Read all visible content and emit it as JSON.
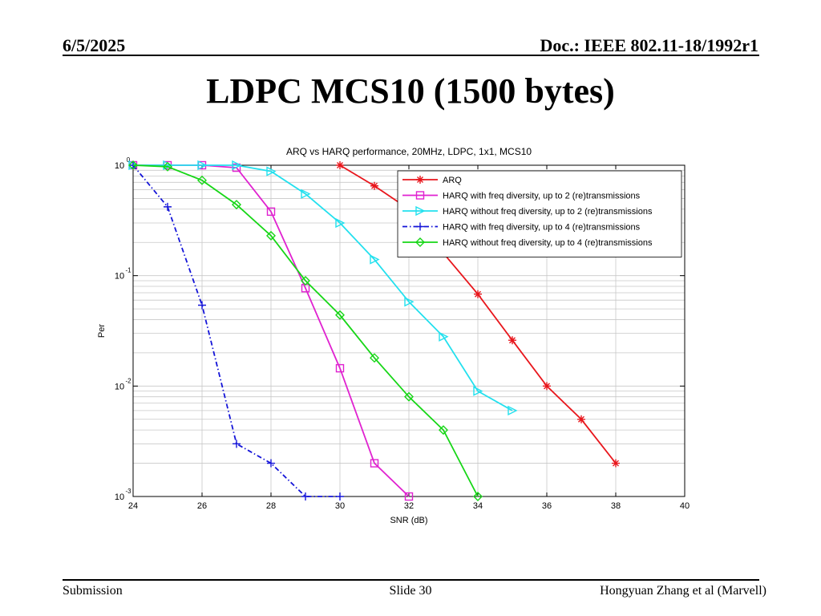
{
  "header": {
    "date": "6/5/2025",
    "doc": "Doc.: IEEE 802.11-18/1992r1"
  },
  "slide": {
    "title": "LDPC MCS10 (1500 bytes)"
  },
  "footer": {
    "left": "Submission",
    "center": "Slide 30",
    "right": "Hongyuan Zhang et al (Marvell)"
  },
  "chart_data": {
    "type": "line",
    "title": "ARQ vs HARQ performance, 20MHz, LDPC, 1x1, MCS10",
    "xlabel": "SNR (dB)",
    "ylabel": "Per",
    "xlim": [
      24,
      40
    ],
    "ylim": [
      0.001,
      1
    ],
    "yscale": "log",
    "grid": true,
    "legend_position": "top-right",
    "x_ticks": [
      "24",
      "26",
      "28",
      "30",
      "32",
      "34",
      "36",
      "38",
      "40"
    ],
    "y_ticks": [
      {
        "base": "10",
        "exp": "0"
      },
      {
        "base": "10",
        "exp": "-1"
      },
      {
        "base": "10",
        "exp": "-2"
      },
      {
        "base": "10",
        "exp": "-3"
      }
    ],
    "series": [
      {
        "name": "ARQ",
        "color": "#e8161c",
        "marker": "star",
        "dash": "solid",
        "x": [
          30,
          31,
          32,
          33,
          34,
          35,
          36,
          37,
          38
        ],
        "y": [
          1.0,
          0.65,
          0.4,
          0.16,
          0.068,
          0.026,
          0.01,
          0.005,
          0.002
        ]
      },
      {
        "name": "HARQ with freq diversity, up to 2 (re)transmissions",
        "color": "#e022d0",
        "marker": "square",
        "dash": "solid",
        "x": [
          24,
          25,
          26,
          27,
          28,
          29,
          30,
          31,
          32
        ],
        "y": [
          1.0,
          1.0,
          1.0,
          0.95,
          0.38,
          0.077,
          0.0145,
          0.002,
          0.001
        ]
      },
      {
        "name": "HARQ without freq diversity, up to 2 (re)transmissions",
        "color": "#22e0ee",
        "marker": "triangle-right",
        "dash": "solid",
        "x": [
          24,
          25,
          26,
          27,
          28,
          29,
          30,
          31,
          32,
          33,
          34,
          35
        ],
        "y": [
          1.0,
          1.0,
          1.0,
          1.0,
          0.88,
          0.55,
          0.3,
          0.14,
          0.058,
          0.028,
          0.009,
          0.006
        ]
      },
      {
        "name": "HARQ with freq diversity, up to 4 (re)transmissions",
        "color": "#1414d8",
        "marker": "plus",
        "dash": "dashdot",
        "x": [
          24,
          25,
          26,
          27,
          28,
          29,
          30
        ],
        "y": [
          1.0,
          0.42,
          0.054,
          0.003,
          0.002,
          0.001,
          0.001
        ]
      },
      {
        "name": "HARQ without freq diversity, up to 4 (re)transmissions",
        "color": "#16d616",
        "marker": "diamond",
        "dash": "solid",
        "x": [
          24,
          25,
          26,
          27,
          28,
          29,
          30,
          31,
          32,
          33,
          34
        ],
        "y": [
          1.0,
          0.97,
          0.73,
          0.44,
          0.23,
          0.09,
          0.044,
          0.018,
          0.008,
          0.004,
          0.001
        ]
      }
    ]
  }
}
